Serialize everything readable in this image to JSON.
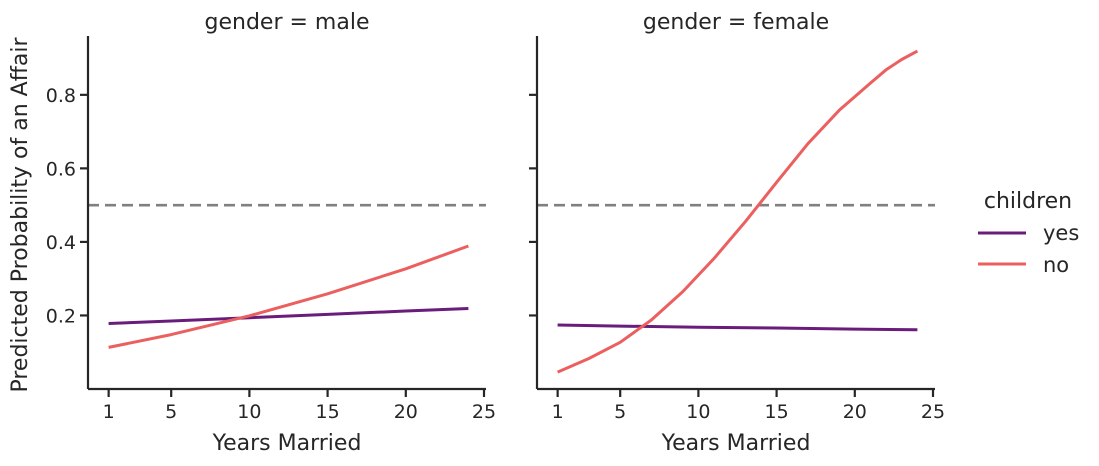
{
  "chart_data": {
    "type": "line",
    "ylabel": "Predicted Probability of an Affair",
    "legend": {
      "title": "children",
      "placement": "right",
      "entries": [
        {
          "label": "yes",
          "color": "#6a1c7b"
        },
        {
          "label": "no",
          "color": "#ec5f5f"
        }
      ]
    },
    "reference_line": {
      "y": 0.5,
      "style": "dashed",
      "color": "#808080"
    },
    "shared_y": true,
    "ylim": [
      0.0,
      0.96
    ],
    "yticks": [
      0.2,
      0.4,
      0.6,
      0.8
    ],
    "ytick_labels": [
      "0.2",
      "0.4",
      "0.6",
      "0.8"
    ],
    "panels": [
      {
        "title": "gender = male",
        "xlabel": "Years Married",
        "xlim": [
          0,
          25
        ],
        "xticks": [
          1,
          5,
          10,
          15,
          20,
          25
        ],
        "xtick_labels": [
          "1",
          "5",
          "10",
          "15",
          "20",
          "25"
        ],
        "series": [
          {
            "name": "yes",
            "color": "#6a1c7b",
            "x": [
              1,
              5,
              10,
              15,
              20,
              24
            ],
            "y": [
              0.178,
              0.185,
              0.194,
              0.203,
              0.212,
              0.219
            ]
          },
          {
            "name": "no",
            "color": "#ec5f5f",
            "x": [
              1,
              5,
              10,
              15,
              20,
              24
            ],
            "y": [
              0.113,
              0.148,
              0.199,
              0.259,
              0.327,
              0.389
            ]
          }
        ]
      },
      {
        "title": "gender = female",
        "xlabel": "Years Married",
        "xlim": [
          0,
          25
        ],
        "xticks": [
          1,
          5,
          10,
          15,
          20,
          25
        ],
        "xtick_labels": [
          "1",
          "5",
          "10",
          "15",
          "20",
          "25"
        ],
        "series": [
          {
            "name": "yes",
            "color": "#6a1c7b",
            "x": [
              1,
              5,
              10,
              15,
              20,
              24
            ],
            "y": [
              0.174,
              0.171,
              0.168,
              0.166,
              0.163,
              0.161
            ]
          },
          {
            "name": "no",
            "color": "#ec5f5f",
            "x": [
              1,
              3,
              5,
              7,
              9,
              11,
              13,
              15,
              17,
              19,
              21,
              22,
              23,
              24
            ],
            "y": [
              0.046,
              0.083,
              0.127,
              0.188,
              0.265,
              0.355,
              0.455,
              0.562,
              0.667,
              0.758,
              0.832,
              0.868,
              0.896,
              0.919
            ]
          }
        ]
      }
    ]
  }
}
